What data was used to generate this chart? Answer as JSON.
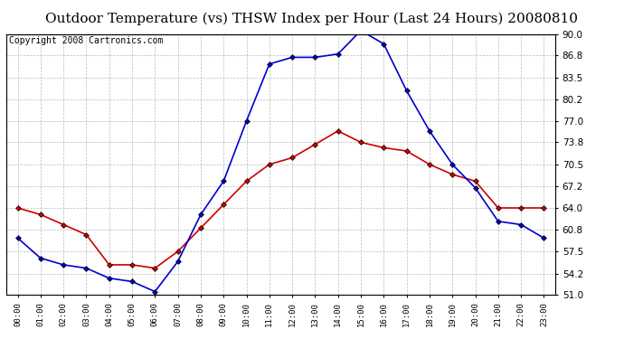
{
  "title": "Outdoor Temperature (vs) THSW Index per Hour (Last 24 Hours) 20080810",
  "copyright_text": "Copyright 2008 Cartronics.com",
  "hours": [
    "00:00",
    "01:00",
    "02:00",
    "03:00",
    "04:00",
    "05:00",
    "06:00",
    "07:00",
    "08:00",
    "09:00",
    "10:00",
    "11:00",
    "12:00",
    "13:00",
    "14:00",
    "15:00",
    "16:00",
    "17:00",
    "18:00",
    "19:00",
    "20:00",
    "21:00",
    "22:00",
    "23:00"
  ],
  "temp_red": [
    64.0,
    63.0,
    61.5,
    60.0,
    55.5,
    55.5,
    55.0,
    57.5,
    61.0,
    64.5,
    68.0,
    70.5,
    71.5,
    73.5,
    75.5,
    73.8,
    73.0,
    72.5,
    70.5,
    69.0,
    68.0,
    64.0,
    64.0,
    64.0
  ],
  "thsw_blue": [
    59.5,
    56.5,
    55.5,
    55.0,
    53.5,
    53.0,
    51.5,
    56.0,
    63.0,
    68.0,
    77.0,
    85.5,
    86.5,
    86.5,
    87.0,
    90.5,
    88.5,
    81.5,
    75.5,
    70.5,
    67.0,
    62.0,
    61.5,
    59.5
  ],
  "ylim": [
    51.0,
    90.0
  ],
  "yticks": [
    51.0,
    54.2,
    57.5,
    60.8,
    64.0,
    67.2,
    70.5,
    73.8,
    77.0,
    80.2,
    83.5,
    86.8,
    90.0
  ],
  "line_color_red": "#cc0000",
  "line_color_blue": "#0000cc",
  "bg_color": "#ffffff",
  "plot_bg_color": "#ffffff",
  "grid_color": "#bbbbbb",
  "title_fontsize": 11,
  "copyright_fontsize": 7,
  "marker": "D",
  "marker_size": 3
}
